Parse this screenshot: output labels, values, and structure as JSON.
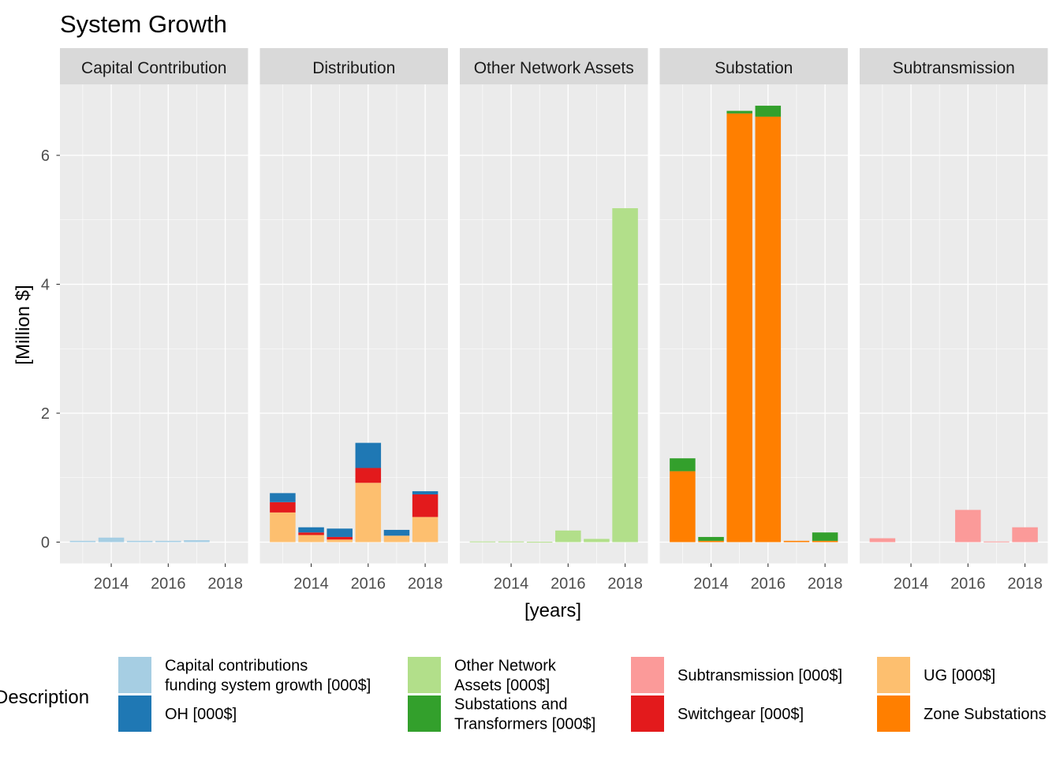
{
  "chart_data": {
    "type": "bar",
    "stacked": true,
    "faceted": true,
    "title": "System Growth",
    "xlabel": "[years]",
    "ylabel": "[Million $]",
    "ylim": [
      -0.3,
      7.1
    ],
    "yticks": [
      0,
      2,
      4,
      6
    ],
    "xticks": [
      2014,
      2016,
      2018
    ],
    "xlim": [
      2012.2,
      2018.8
    ],
    "grid": true,
    "legend_position": "bottom",
    "legend": {
      "title": "Description",
      "entries": [
        {
          "key": "cap",
          "label": "Capital contributions funding system growth [000$]",
          "lines": [
            "Capital contributions",
            "funding system growth [000$]"
          ],
          "color": "#a6cee3"
        },
        {
          "key": "oh",
          "label": "OH [000$]",
          "lines": [
            "OH [000$]"
          ],
          "color": "#1f78b4"
        },
        {
          "key": "ona",
          "label": "Other Network Assets [000$]",
          "lines": [
            "Other Network",
            "Assets [000$]"
          ],
          "color": "#b2df8a"
        },
        {
          "key": "sat",
          "label": "Substations and Transformers [000$]",
          "lines": [
            "Substations and",
            "Transformers [000$]"
          ],
          "color": "#33a02c"
        },
        {
          "key": "sub",
          "label": "Subtransmission [000$]",
          "lines": [
            "Subtransmission [000$]"
          ],
          "color": "#fb9a99"
        },
        {
          "key": "sw",
          "label": "Switchgear [000$]",
          "lines": [
            "Switchgear [000$]"
          ],
          "color": "#e31a1c"
        },
        {
          "key": "ug",
          "label": "UG [000$]",
          "lines": [
            "UG [000$]"
          ],
          "color": "#fdbf6f"
        },
        {
          "key": "zs",
          "label": "Zone Substations",
          "lines": [
            "Zone Substations"
          ],
          "color": "#ff7f00"
        }
      ]
    },
    "facets": [
      {
        "name": "Capital Contribution",
        "x": [
          2013,
          2014,
          2015,
          2016,
          2017,
          2018
        ],
        "series": [
          {
            "key": "cap",
            "values": [
              0.02,
              0.07,
              0.02,
              0.02,
              0.03,
              0.0
            ]
          }
        ]
      },
      {
        "name": "Distribution",
        "x": [
          2013,
          2014,
          2015,
          2016,
          2017,
          2018
        ],
        "series": [
          {
            "key": "ug",
            "values": [
              0.46,
              0.11,
              0.04,
              0.92,
              0.1,
              0.39
            ]
          },
          {
            "key": "sw",
            "values": [
              0.16,
              0.04,
              0.04,
              0.23,
              0.0,
              0.35
            ]
          },
          {
            "key": "oh",
            "values": [
              0.14,
              0.08,
              0.13,
              0.39,
              0.09,
              0.05
            ]
          }
        ]
      },
      {
        "name": "Other Network Assets",
        "x": [
          2013,
          2014,
          2015,
          2016,
          2017,
          2018
        ],
        "series": [
          {
            "key": "ona",
            "values": [
              0.01,
              0.01,
              0.005,
              0.18,
              0.05,
              5.18
            ]
          }
        ]
      },
      {
        "name": "Substation",
        "x": [
          2013,
          2014,
          2015,
          2016,
          2017,
          2018
        ],
        "series": [
          {
            "key": "zs",
            "values": [
              1.1,
              0.02,
              6.65,
              6.6,
              0.02,
              0.02
            ]
          },
          {
            "key": "sat",
            "values": [
              0.2,
              0.06,
              0.04,
              0.17,
              0.0,
              0.13
            ]
          }
        ]
      },
      {
        "name": "Subtransmission",
        "x": [
          2013,
          2014,
          2015,
          2016,
          2017,
          2018
        ],
        "series": [
          {
            "key": "sub",
            "values": [
              0.06,
              0.0,
              0.0,
              0.5,
              0.01,
              0.23
            ]
          }
        ]
      }
    ]
  }
}
